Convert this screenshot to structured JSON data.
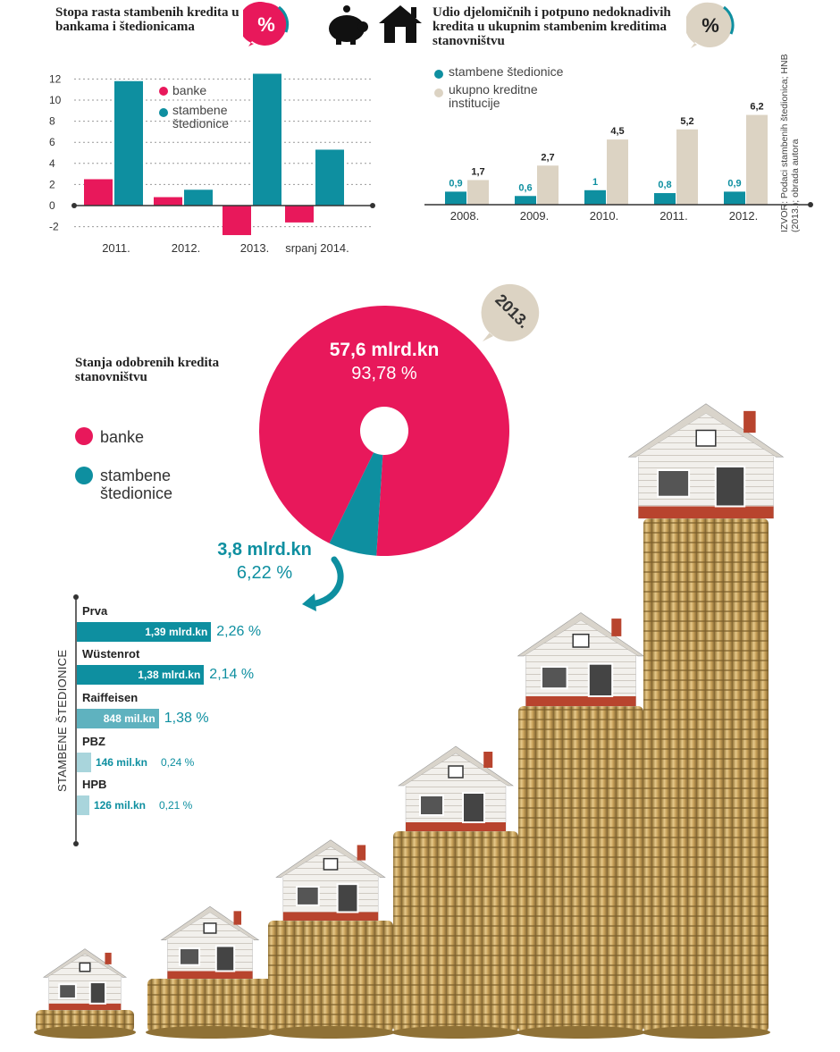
{
  "chart_data": [
    {
      "type": "bar",
      "title": "Stopa rasta stambenih kredita u bankama i štedionicama",
      "badge": "%",
      "categories": [
        "2011.",
        "2012.",
        "2013.",
        "srpanj 2014."
      ],
      "series": [
        {
          "name": "banke",
          "color": "#e8185b",
          "values": [
            2.5,
            0.8,
            -2.8,
            -1.6
          ]
        },
        {
          "name": "stambene štedionice",
          "color": "#0e8fa0",
          "values": [
            11.8,
            1.5,
            12.5,
            5.3
          ]
        }
      ],
      "yticks": [
        12,
        10,
        8,
        6,
        4,
        2,
        0,
        -2
      ],
      "ylim": [
        -3,
        13
      ]
    },
    {
      "type": "bar",
      "title": "Udio djelomičnih i potpuno nedoknadivih kredita u ukupnim stambenim kreditima stanovništvu",
      "badge": "%",
      "categories": [
        "2008.",
        "2009.",
        "2010.",
        "2011.",
        "2012."
      ],
      "series": [
        {
          "name": "stambene štedionice",
          "color": "#0e8fa0",
          "values": [
            0.9,
            0.6,
            1,
            0.8,
            0.9
          ],
          "labels": [
            "0,9",
            "0,6",
            "1",
            "0,8",
            "0,9"
          ]
        },
        {
          "name": "ukupno kreditne institucije",
          "color": "#dcd3c3",
          "values": [
            1.7,
            2.7,
            4.5,
            5.2,
            6.2
          ],
          "labels": [
            "1,7",
            "2,7",
            "4,5",
            "5,2",
            "6,2"
          ]
        }
      ],
      "source": "IZVOR: Podaci stambenih štedionica; HNB (2013.); obrada autora"
    },
    {
      "type": "pie",
      "title": "Stanja odobrenih kredita stanovništvu",
      "year_badge": "2013.",
      "slices": [
        {
          "name": "banke",
          "color": "#e8185b",
          "value": 93.78,
          "amount": "57,6 mlrd.kn",
          "pct": "93,78 %"
        },
        {
          "name": "stambene štedionice",
          "color": "#0e8fa0",
          "value": 6.22,
          "amount": "3,8 mlrd.kn",
          "pct": "6,22 %"
        }
      ]
    },
    {
      "type": "bar",
      "title": "STAMBENE ŠTEDIONICE",
      "items": [
        {
          "name": "Prva",
          "amount": "1,39 mlrd.kn",
          "pct": "2,26 %",
          "value": 2.26,
          "color": "#0e8fa0"
        },
        {
          "name": "Wüstenrot",
          "amount": "1,38 mlrd.kn",
          "pct": "2,14 %",
          "value": 2.14,
          "color": "#0e8fa0"
        },
        {
          "name": "Raiffeisen",
          "amount": "848 mil.kn",
          "pct": "1,38 %",
          "value": 1.38,
          "color": "#5fb2bf"
        },
        {
          "name": "PBZ",
          "amount": "146 mil.kn",
          "pct": "0,24 %",
          "value": 0.24,
          "color": "#a9d5dc"
        },
        {
          "name": "HPB",
          "amount": "126 mil.kn",
          "pct": "0,21 %",
          "value": 0.21,
          "color": "#a9d5dc"
        }
      ]
    }
  ]
}
